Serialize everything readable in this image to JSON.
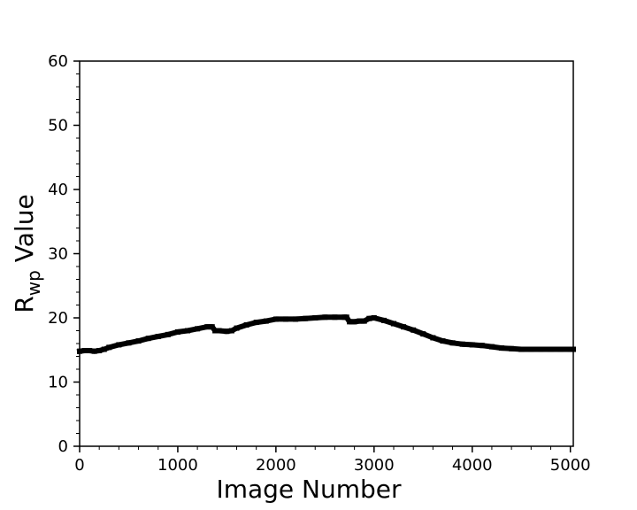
{
  "chart_data": {
    "type": "line",
    "title": "",
    "xlabel": "Image Number",
    "ylabel": {
      "main": "R",
      "subscript": "wp",
      "suffix": " Value"
    },
    "xlim": [
      0,
      5030
    ],
    "ylim": [
      0,
      60
    ],
    "x_ticks": [
      0,
      1000,
      2000,
      3000,
      4000,
      5000
    ],
    "y_ticks": [
      0,
      10,
      20,
      30,
      40,
      50,
      60
    ],
    "x_minor_step": 200,
    "y_minor_step": 2,
    "grid": false,
    "legend": "none",
    "series_color": "#000000",
    "marker": "square",
    "series": [
      {
        "x": [
          0,
          50,
          100,
          150,
          200,
          250,
          300,
          400,
          500,
          600,
          700,
          800,
          900,
          1000,
          1100,
          1200,
          1300,
          1350,
          1380,
          1420,
          1500,
          1550,
          1600,
          1700,
          1800,
          1900,
          2000,
          2100,
          2200,
          2300,
          2400,
          2500,
          2600,
          2700,
          2720,
          2750,
          2800,
          2850,
          2900,
          2950,
          3000,
          3100,
          3200,
          3300,
          3400,
          3500,
          3600,
          3700,
          3800,
          3900,
          4000,
          4100,
          4200,
          4300,
          4400,
          4500,
          4600,
          4700,
          4800,
          4900,
          5000,
          5030
        ],
        "y": [
          14.8,
          14.9,
          14.9,
          14.8,
          14.9,
          15.1,
          15.4,
          15.8,
          16.1,
          16.4,
          16.8,
          17.1,
          17.4,
          17.8,
          18.0,
          18.3,
          18.6,
          18.6,
          18.0,
          18.0,
          17.9,
          18.0,
          18.4,
          18.9,
          19.3,
          19.5,
          19.8,
          19.8,
          19.8,
          19.9,
          20.0,
          20.1,
          20.1,
          20.1,
          20.1,
          19.4,
          19.4,
          19.5,
          19.5,
          19.9,
          20.0,
          19.6,
          19.1,
          18.6,
          18.1,
          17.5,
          16.9,
          16.4,
          16.1,
          15.9,
          15.8,
          15.7,
          15.5,
          15.3,
          15.2,
          15.1,
          15.1,
          15.1,
          15.1,
          15.1,
          15.1,
          15.1
        ]
      }
    ]
  }
}
